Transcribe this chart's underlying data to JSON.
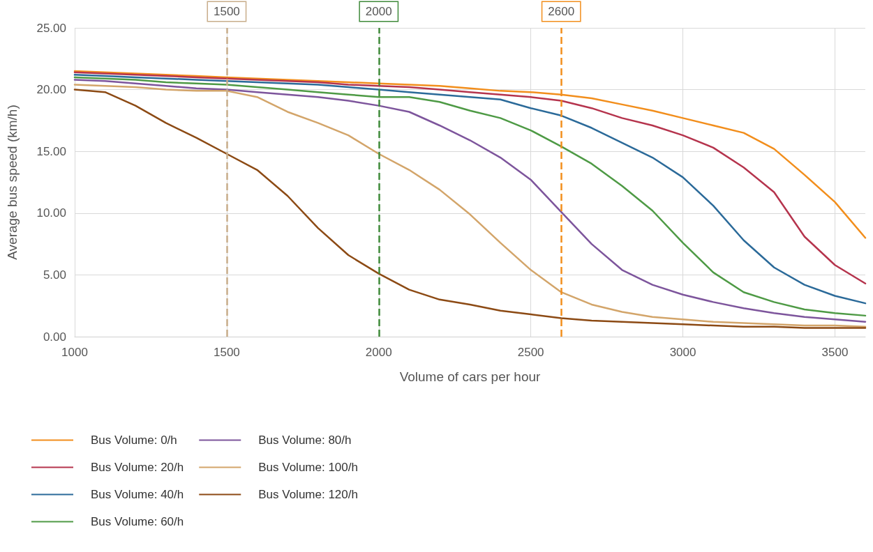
{
  "chart_data": {
    "type": "line",
    "xlabel": "Volume of cars per hour",
    "ylabel": "Average bus speed (km/h)",
    "x": [
      1000,
      1100,
      1200,
      1300,
      1400,
      1500,
      1600,
      1700,
      1800,
      1900,
      2000,
      2100,
      2200,
      2300,
      2400,
      2500,
      2600,
      2700,
      2800,
      2900,
      3000,
      3100,
      3200,
      3300,
      3400,
      3500,
      3600
    ],
    "series": [
      {
        "name": "Bus Volume: 0/h",
        "color": "#f28e1c",
        "values": [
          21.5,
          21.4,
          21.3,
          21.2,
          21.1,
          21.0,
          20.9,
          20.8,
          20.7,
          20.6,
          20.5,
          20.4,
          20.3,
          20.1,
          19.9,
          19.8,
          19.6,
          19.3,
          18.8,
          18.3,
          17.7,
          17.1,
          16.5,
          15.2,
          13.1,
          10.9,
          8.0
        ]
      },
      {
        "name": "Bus Volume: 20/h",
        "color": "#b5344d",
        "values": [
          21.4,
          21.3,
          21.2,
          21.1,
          21.0,
          20.9,
          20.8,
          20.7,
          20.6,
          20.4,
          20.3,
          20.2,
          20.0,
          19.8,
          19.6,
          19.4,
          19.1,
          18.5,
          17.7,
          17.1,
          16.3,
          15.3,
          13.7,
          11.7,
          8.1,
          5.8,
          4.3
        ]
      },
      {
        "name": "Bus Volume: 40/h",
        "color": "#2b6a99",
        "values": [
          21.2,
          21.1,
          21.0,
          20.9,
          20.8,
          20.7,
          20.6,
          20.5,
          20.4,
          20.2,
          20.0,
          19.8,
          19.6,
          19.4,
          19.2,
          18.5,
          17.9,
          16.9,
          15.7,
          14.5,
          12.9,
          10.6,
          7.8,
          5.6,
          4.2,
          3.3,
          2.7
        ]
      },
      {
        "name": "Bus Volume: 60/h",
        "color": "#4e9a45",
        "values": [
          21.0,
          20.9,
          20.8,
          20.6,
          20.5,
          20.4,
          20.2,
          20.0,
          19.8,
          19.6,
          19.4,
          19.4,
          19.0,
          18.3,
          17.7,
          16.7,
          15.4,
          14.0,
          12.2,
          10.2,
          7.6,
          5.2,
          3.6,
          2.8,
          2.2,
          1.9,
          1.7
        ]
      },
      {
        "name": "Bus Volume: 80/h",
        "color": "#7d559c",
        "values": [
          20.8,
          20.7,
          20.5,
          20.3,
          20.1,
          20.0,
          19.8,
          19.6,
          19.4,
          19.1,
          18.7,
          18.2,
          17.1,
          15.9,
          14.5,
          12.7,
          10.1,
          7.5,
          5.4,
          4.2,
          3.4,
          2.8,
          2.3,
          1.9,
          1.6,
          1.4,
          1.2
        ]
      },
      {
        "name": "Bus Volume: 100/h",
        "color": "#d3a56a",
        "values": [
          20.4,
          20.3,
          20.2,
          20.0,
          19.9,
          19.9,
          19.4,
          18.2,
          17.3,
          16.3,
          14.8,
          13.5,
          11.9,
          9.9,
          7.6,
          5.4,
          3.6,
          2.6,
          2.0,
          1.6,
          1.4,
          1.2,
          1.1,
          1.0,
          0.9,
          0.9,
          0.8
        ]
      },
      {
        "name": "Bus Volume: 120/h",
        "color": "#8c4a14",
        "values": [
          20.0,
          19.8,
          18.7,
          17.3,
          16.1,
          14.8,
          13.5,
          11.4,
          8.8,
          6.6,
          5.1,
          3.8,
          3.0,
          2.6,
          2.1,
          1.8,
          1.5,
          1.3,
          1.2,
          1.1,
          1.0,
          0.9,
          0.8,
          0.8,
          0.7,
          0.7,
          0.7
        ]
      }
    ],
    "xlim": [
      1000,
      3600
    ],
    "xticks": [
      1000,
      1500,
      2000,
      2500,
      3000,
      3500
    ],
    "ylim": [
      0,
      25
    ],
    "yticks": [
      {
        "value": 0,
        "label": "0.00"
      },
      {
        "value": 5,
        "label": "5.00"
      },
      {
        "value": 10,
        "label": "10.00"
      },
      {
        "value": 15,
        "label": "15.00"
      },
      {
        "value": 20,
        "label": "20.00"
      },
      {
        "value": 25,
        "label": "25.00"
      }
    ],
    "ref_lines": [
      {
        "axis": "x",
        "value": 1500,
        "label": "1500",
        "color": "#c8ad8a",
        "line_style": "dashed"
      },
      {
        "axis": "x",
        "value": 2000,
        "label": "2000",
        "color": "#3f8a3a",
        "line_style": "dashed"
      },
      {
        "axis": "x",
        "value": 2600,
        "label": "2600",
        "color": "#f28e1c",
        "line_style": "dashed"
      }
    ],
    "grid": true,
    "legend": "bottom left",
    "marker": "none",
    "line_style": "solid"
  }
}
